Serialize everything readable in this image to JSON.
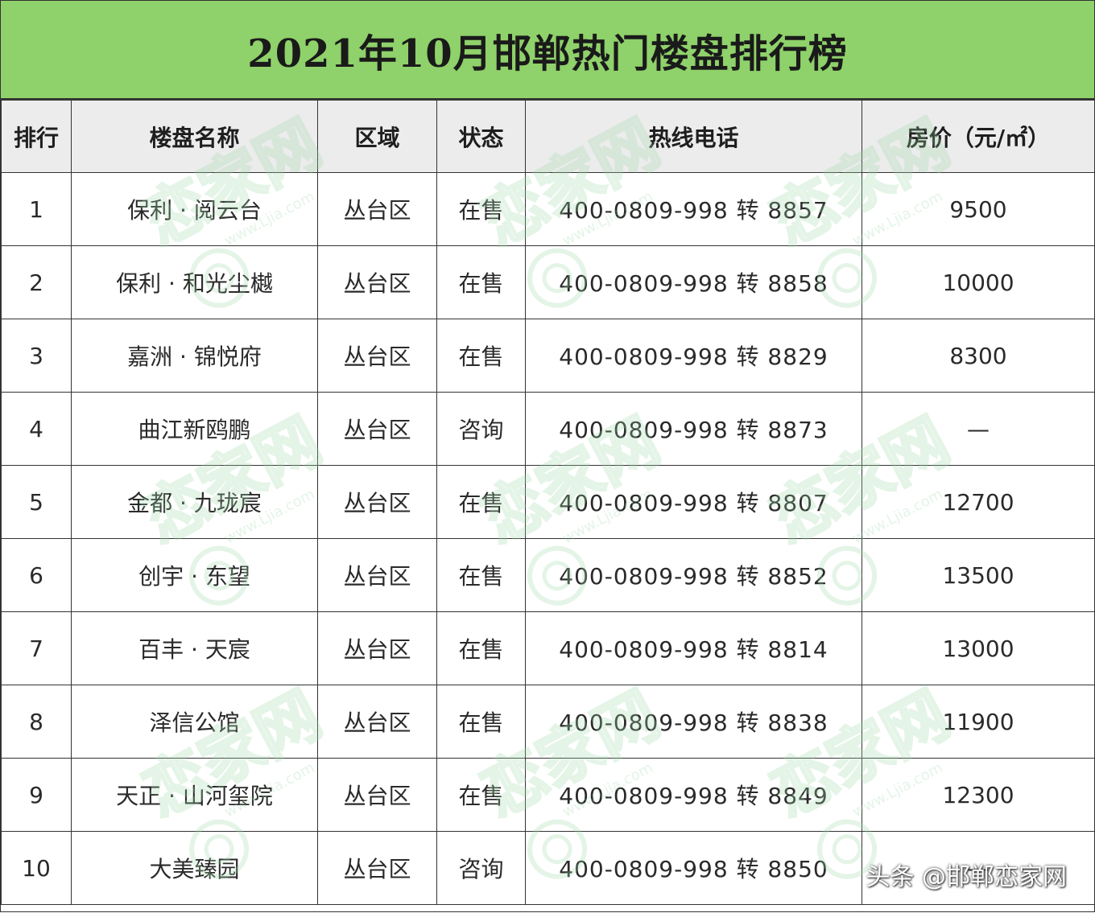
{
  "title": "2021年10月邯郸热门楼盘排行榜",
  "headers": [
    "排行",
    "楼盘名称",
    "区域",
    "状态",
    "热线电话",
    "房价（元/㎡）"
  ],
  "rows": [
    {
      "rank": "1",
      "name": "保利 · 阅云台",
      "area": "丛台区",
      "status": "在售",
      "phone": "400-0809-998 转 8857",
      "price": "9500"
    },
    {
      "rank": "2",
      "name": "保利 · 和光尘樾",
      "area": "丛台区",
      "status": "在售",
      "phone": "400-0809-998 转 8858",
      "price": "10000"
    },
    {
      "rank": "3",
      "name": "嘉洲 · 锦悦府",
      "area": "丛台区",
      "status": "在售",
      "phone": "400-0809-998 转 8829",
      "price": "8300"
    },
    {
      "rank": "4",
      "name": "曲江新鸥鹏",
      "area": "丛台区",
      "status": "咨询",
      "phone": "400-0809-998 转 8873",
      "price": "—"
    },
    {
      "rank": "5",
      "name": "金都 · 九珑宸",
      "area": "丛台区",
      "status": "在售",
      "phone": "400-0809-998 转 8807",
      "price": "12700"
    },
    {
      "rank": "6",
      "name": "创宇 · 东望",
      "area": "丛台区",
      "status": "在售",
      "phone": "400-0809-998 转 8852",
      "price": "13500"
    },
    {
      "rank": "7",
      "name": "百丰 · 天宸",
      "area": "丛台区",
      "status": "在售",
      "phone": "400-0809-998 转 8814",
      "price": "13000"
    },
    {
      "rank": "8",
      "name": "泽信公馆",
      "area": "丛台区",
      "status": "在售",
      "phone": "400-0809-998 转 8838",
      "price": "11900"
    },
    {
      "rank": "9",
      "name": "天正 · 山河玺院",
      "area": "丛台区",
      "status": "在售",
      "phone": "400-0809-998 转 8849",
      "price": "12300"
    },
    {
      "rank": "10",
      "name": "大美臻园",
      "area": "丛台区",
      "status": "咨询",
      "phone": "400-0809-998 转 8850",
      "price": "—"
    }
  ],
  "watermark": {
    "logo_text": "恋家网",
    "url_text": "www.Ljia.com"
  },
  "signature": "头条 @邯郸恋家网",
  "colors": {
    "title_bg": "#8fd16a",
    "header_bg": "#ececec",
    "watermark": "#9fd8a8"
  }
}
